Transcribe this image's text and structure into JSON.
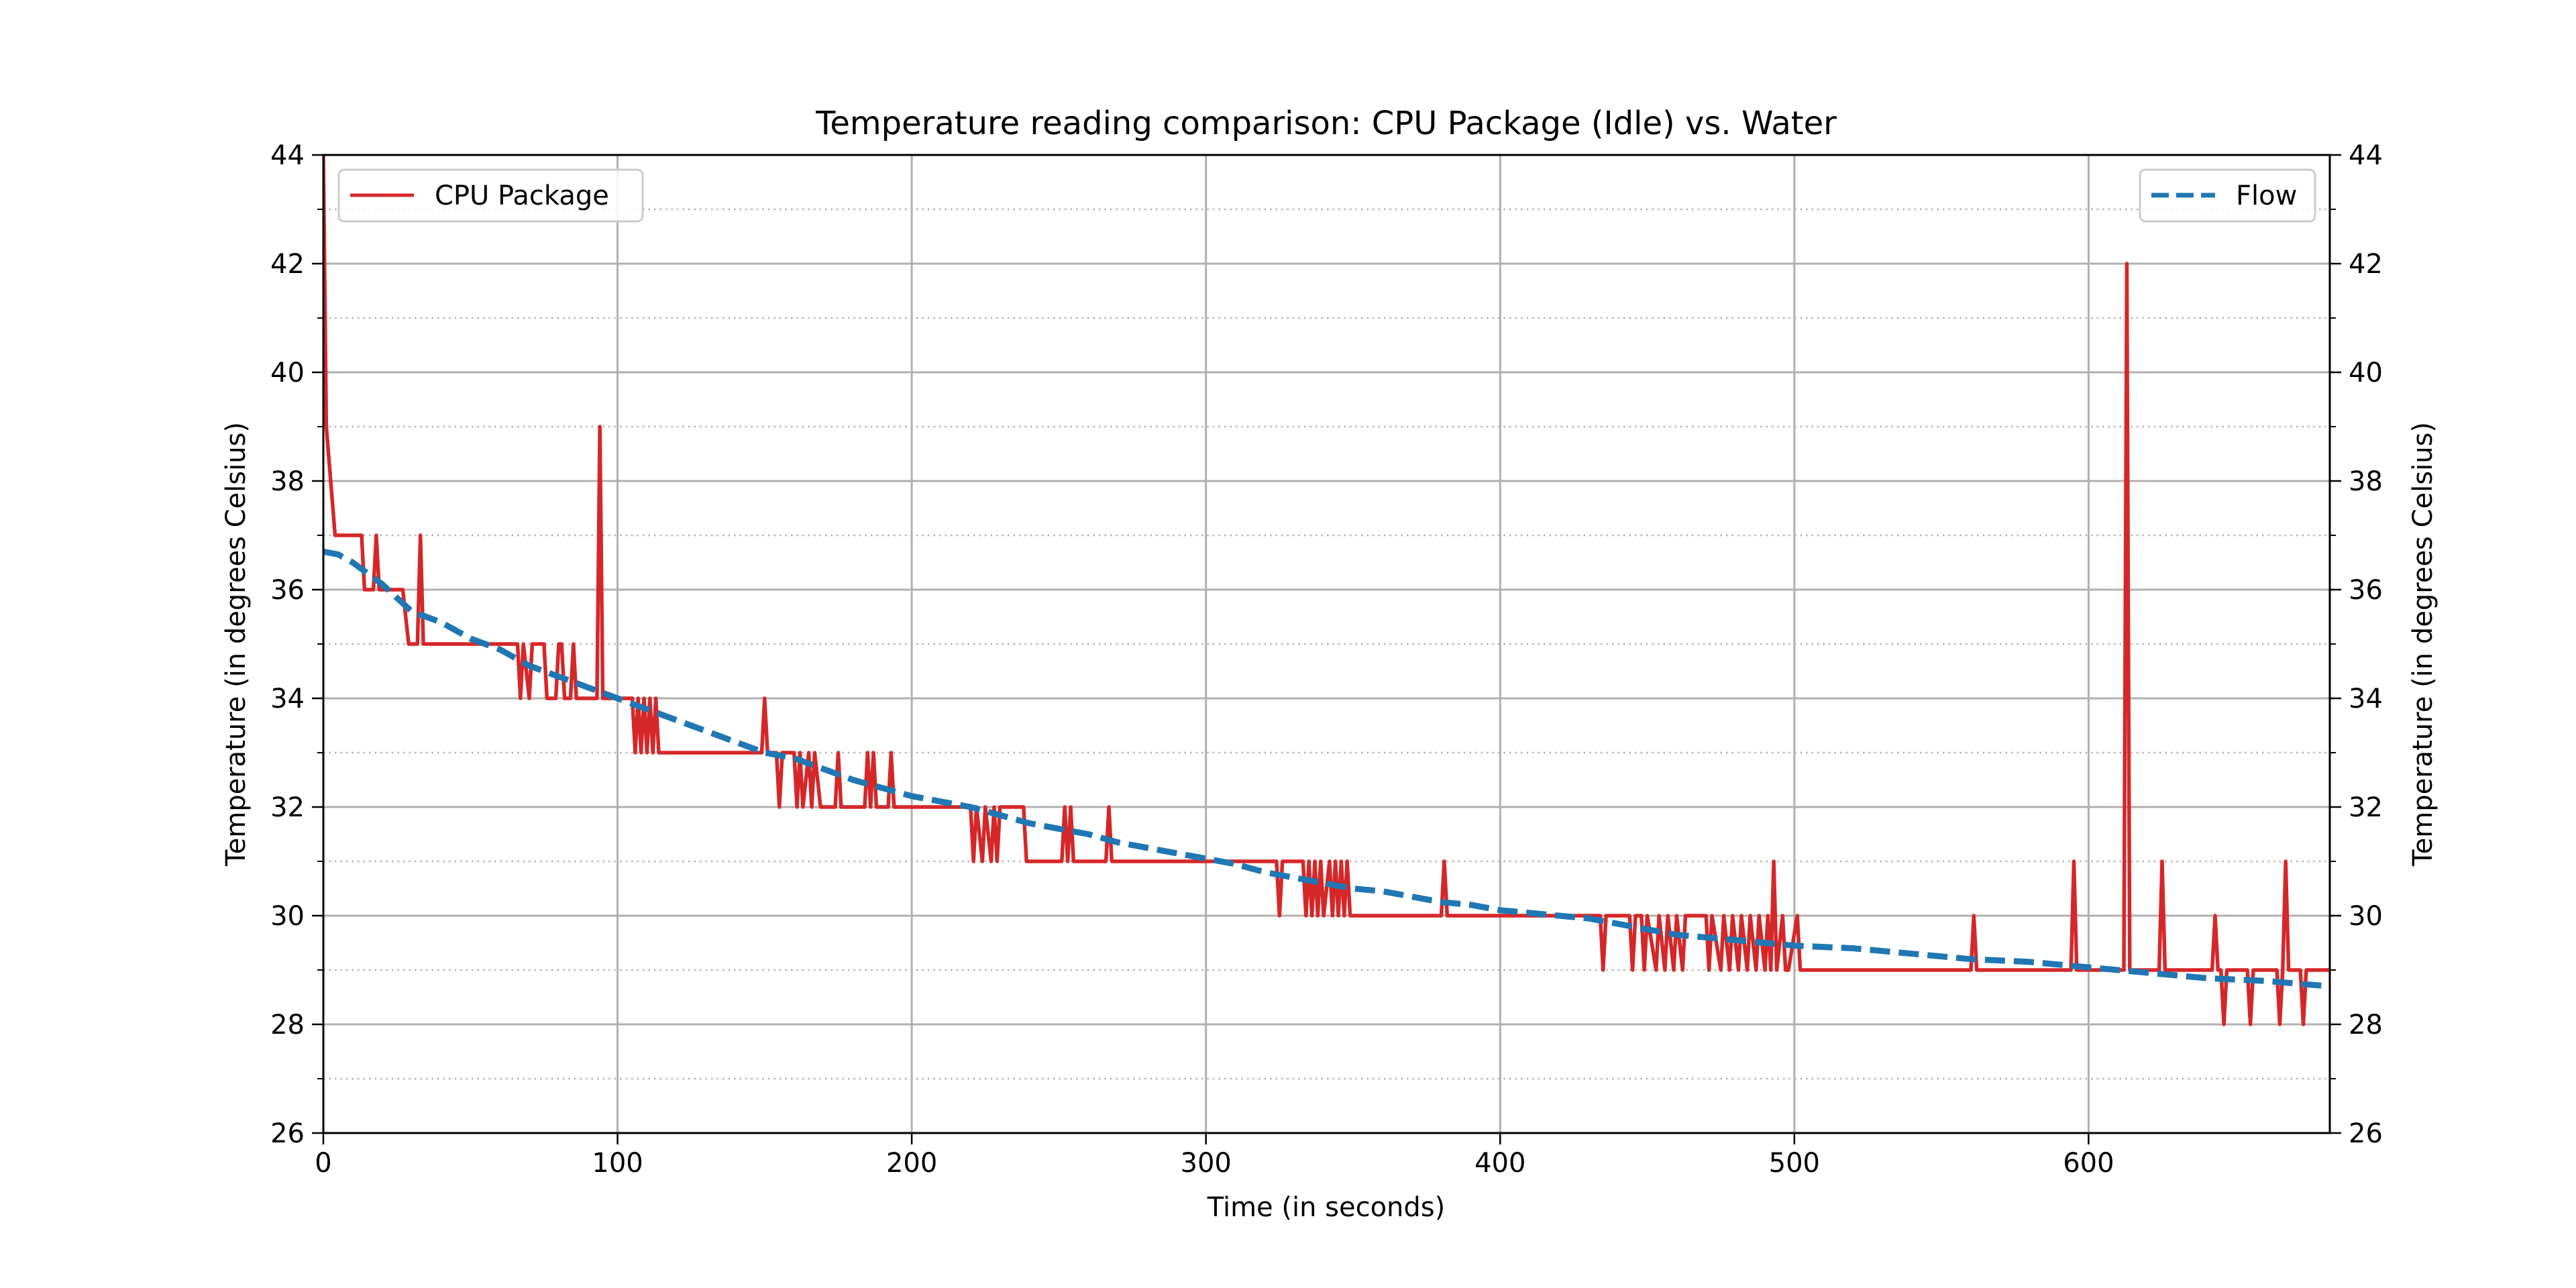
{
  "chart_data": {
    "type": "line",
    "title": "Temperature reading comparison: CPU Package (Idle) vs. Water",
    "xlabel": "Time (in seconds)",
    "ylabel": "Temperature (in degrees Celsius)",
    "ylabel_right": "Temperature (in degrees Celsius)",
    "xlim": [
      0,
      682
    ],
    "ylim": [
      26,
      44
    ],
    "xticks": [
      0,
      100,
      200,
      300,
      400,
      500,
      600
    ],
    "yticks": [
      26,
      28,
      30,
      32,
      34,
      36,
      38,
      40,
      42,
      44
    ],
    "grid": "major solid, minor dotted on y",
    "series": [
      {
        "name": "CPU Package",
        "color": "#d62728",
        "style": "solid",
        "legend": "top-left",
        "axis": "left",
        "x": [
          0,
          1,
          4,
          13,
          14,
          17,
          18,
          19,
          27,
          29,
          32,
          33,
          34,
          66,
          67,
          68,
          70,
          71,
          75,
          76,
          79,
          80,
          81,
          82,
          84,
          85,
          86,
          93,
          94,
          95,
          105,
          106,
          107,
          108,
          109,
          110,
          111,
          112,
          113,
          114,
          149,
          150,
          151,
          154,
          155,
          156,
          160,
          161,
          162,
          163,
          165,
          166,
          167,
          169,
          174,
          175,
          176,
          184,
          185,
          186,
          187,
          188,
          192,
          193,
          194,
          220,
          221,
          222,
          224,
          225,
          227,
          228,
          229,
          230,
          238,
          239,
          251,
          252,
          253,
          254,
          255,
          266,
          267,
          268,
          324,
          325,
          326,
          333,
          334,
          335,
          336,
          337,
          338,
          339,
          340,
          342,
          343,
          344,
          345,
          346,
          347,
          348,
          349,
          380,
          381,
          382,
          434,
          435,
          436,
          444,
          445,
          446,
          448,
          449,
          450,
          453,
          454,
          456,
          457,
          459,
          460,
          462,
          463,
          470,
          471,
          472,
          475,
          476,
          478,
          479,
          481,
          482,
          484,
          485,
          487,
          488,
          490,
          491,
          492,
          493,
          494,
          496,
          497,
          498,
          501,
          502,
          560,
          561,
          562,
          594,
          595,
          596,
          612,
          613,
          614,
          624,
          625,
          626,
          642,
          643,
          644,
          645,
          646,
          647,
          654,
          655,
          656,
          664,
          665,
          666,
          667,
          668,
          672,
          673,
          674,
          682
        ],
        "y": [
          44,
          39,
          37,
          37,
          36,
          36,
          37,
          36,
          36,
          35,
          35,
          37,
          35,
          35,
          34,
          35,
          34,
          35,
          35,
          34,
          34,
          35,
          35,
          34,
          34,
          35,
          34,
          34,
          39,
          34,
          34,
          33,
          34,
          33,
          34,
          33,
          34,
          33,
          34,
          33,
          33,
          34,
          33,
          33,
          32,
          33,
          33,
          32,
          33,
          32,
          33,
          32,
          33,
          32,
          32,
          33,
          32,
          32,
          33,
          32,
          33,
          32,
          32,
          33,
          32,
          32,
          31,
          32,
          31,
          32,
          31,
          32,
          31,
          32,
          32,
          31,
          31,
          32,
          31,
          32,
          31,
          31,
          32,
          31,
          31,
          30,
          31,
          31,
          30,
          31,
          30,
          31,
          30,
          31,
          30,
          31,
          30,
          31,
          30,
          31,
          30,
          31,
          30,
          30,
          31,
          30,
          30,
          29,
          30,
          30,
          29,
          30,
          30,
          29,
          30,
          29,
          30,
          29,
          30,
          29,
          30,
          29,
          30,
          30,
          29,
          30,
          29,
          30,
          29,
          30,
          29,
          30,
          29,
          30,
          29,
          30,
          29,
          30,
          29,
          31,
          29,
          30,
          29,
          29,
          30,
          29,
          29,
          30,
          29,
          29,
          31,
          29,
          29,
          42,
          29,
          29,
          31,
          29,
          29,
          30,
          29,
          29,
          28,
          29,
          29,
          28,
          29,
          29,
          28,
          29,
          31,
          29,
          29,
          28,
          29,
          29
        ]
      },
      {
        "name": "Flow",
        "color": "#1f77b4",
        "style": "dashed",
        "legend": "top-right",
        "axis": "right",
        "x": [
          0,
          5,
          10,
          20,
          30,
          40,
          50,
          60,
          70,
          80,
          90,
          100,
          110,
          120,
          130,
          140,
          150,
          160,
          170,
          180,
          190,
          200,
          210,
          220,
          230,
          240,
          250,
          260,
          270,
          280,
          290,
          300,
          310,
          320,
          330,
          340,
          350,
          360,
          370,
          380,
          390,
          400,
          410,
          420,
          430,
          440,
          450,
          460,
          470,
          480,
          490,
          500,
          520,
          540,
          560,
          580,
          600,
          620,
          640,
          660,
          682
        ],
        "y": [
          36.7,
          36.65,
          36.5,
          36.1,
          35.6,
          35.4,
          35.1,
          34.9,
          34.6,
          34.4,
          34.2,
          34.0,
          33.8,
          33.6,
          33.4,
          33.2,
          33.0,
          32.9,
          32.7,
          32.5,
          32.35,
          32.2,
          32.1,
          32.0,
          31.85,
          31.7,
          31.6,
          31.5,
          31.35,
          31.25,
          31.15,
          31.05,
          30.95,
          30.8,
          30.7,
          30.6,
          30.5,
          30.45,
          30.35,
          30.25,
          30.2,
          30.1,
          30.05,
          30.0,
          29.95,
          29.85,
          29.75,
          29.65,
          29.6,
          29.55,
          29.5,
          29.45,
          29.4,
          29.3,
          29.2,
          29.15,
          29.05,
          28.95,
          28.85,
          28.8,
          28.7
        ]
      }
    ]
  }
}
